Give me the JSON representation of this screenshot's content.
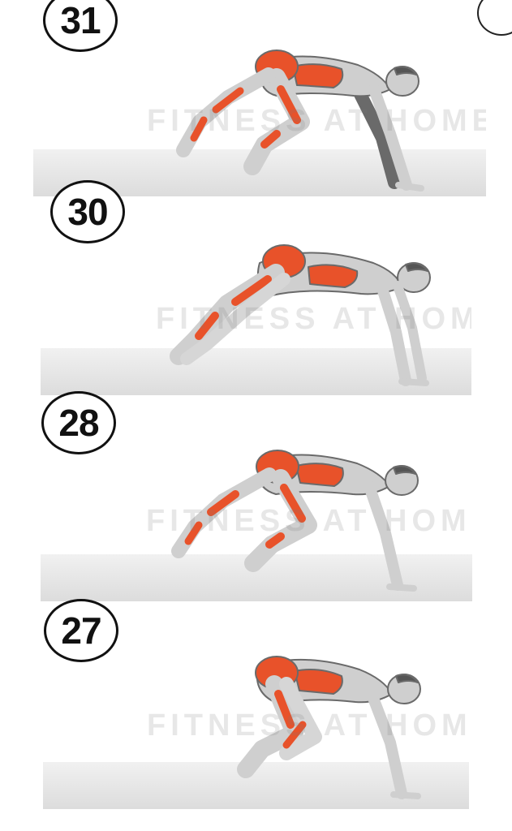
{
  "panels": [
    {
      "number": "31",
      "watermark": "FITNESS AT HOME",
      "pose": "knee-tuck-left"
    },
    {
      "number": "30",
      "watermark": "FITNESS AT HOME",
      "pose": "extended-plank"
    },
    {
      "number": "28",
      "watermark": "FITNESS AT HOME",
      "pose": "knee-tuck-right"
    },
    {
      "number": "27",
      "watermark": "FITNESS AT HOME",
      "pose": "crouch-tuck"
    }
  ],
  "colors": {
    "muscle": "#e8522a",
    "skin": "#cfcfcf",
    "outline": "#6a6a6a",
    "badge_border": "#111111"
  }
}
